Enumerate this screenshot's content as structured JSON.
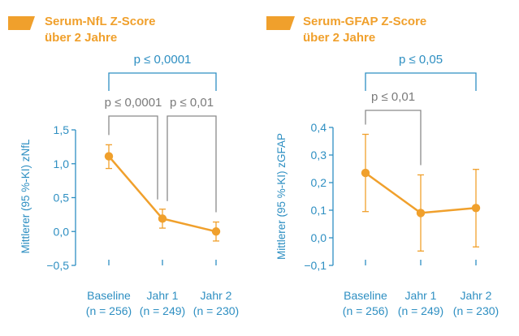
{
  "colors": {
    "accent": "#F0A02C",
    "axis": "#2E8FC2",
    "grey": "#8A8A8A"
  },
  "chart_data": [
    {
      "type": "line",
      "title_line1": "Serum-NfL Z-Score",
      "title_line2": "über 2 Jahre",
      "ylabel": "Mittlerer (95 %-KI) zNfL",
      "ylim": [
        -0.5,
        1.5
      ],
      "yticks": [
        1.5,
        1.0,
        0.5,
        0.0,
        -0.5
      ],
      "ytick_labels": [
        "1,5",
        "1,0",
        "0,5",
        "0,0",
        "−0,5"
      ],
      "categories": [
        "Baseline",
        "Jahr 1",
        "Jahr 2"
      ],
      "category_n": [
        "(n = 256)",
        "(n = 249)",
        "(n = 230)"
      ],
      "values": [
        1.11,
        0.19,
        0.0
      ],
      "ci_low": [
        0.93,
        0.05,
        -0.14
      ],
      "ci_high": [
        1.28,
        0.33,
        0.14
      ],
      "brackets": [
        {
          "from": 0,
          "to": 2,
          "label": "p ≤ 0,0001",
          "color": "blue",
          "level": "upper"
        },
        {
          "from": 0,
          "to": 1,
          "label": "p ≤ 0,0001",
          "color": "grey",
          "level": "lower"
        },
        {
          "from": 1,
          "to": 2,
          "label": "p ≤ 0,01",
          "color": "grey",
          "level": "lower"
        }
      ]
    },
    {
      "type": "line",
      "title_line1": "Serum-GFAP Z-Score",
      "title_line2": "über 2 Jahre",
      "ylabel": "Mittlerer (95 %-KI) zGFAP",
      "ylim": [
        -0.1,
        0.4
      ],
      "yticks": [
        0.4,
        0.3,
        0.2,
        0.1,
        0.0,
        -0.1
      ],
      "ytick_labels": [
        "0,4",
        "0,3",
        "0,2",
        "0,1",
        "0,0",
        "−0,1"
      ],
      "categories": [
        "Baseline",
        "Jahr 1",
        "Jahr 2"
      ],
      "category_n": [
        "(n = 256)",
        "(n = 249)",
        "(n = 230)"
      ],
      "values": [
        0.235,
        0.09,
        0.108
      ],
      "ci_low": [
        0.095,
        -0.048,
        -0.033
      ],
      "ci_high": [
        0.375,
        0.228,
        0.248
      ],
      "brackets": [
        {
          "from": 0,
          "to": 2,
          "label": "p ≤ 0,05",
          "color": "blue",
          "level": "upper"
        },
        {
          "from": 0,
          "to": 1,
          "label": "p ≤ 0,01",
          "color": "grey",
          "level": "lower"
        }
      ]
    }
  ]
}
